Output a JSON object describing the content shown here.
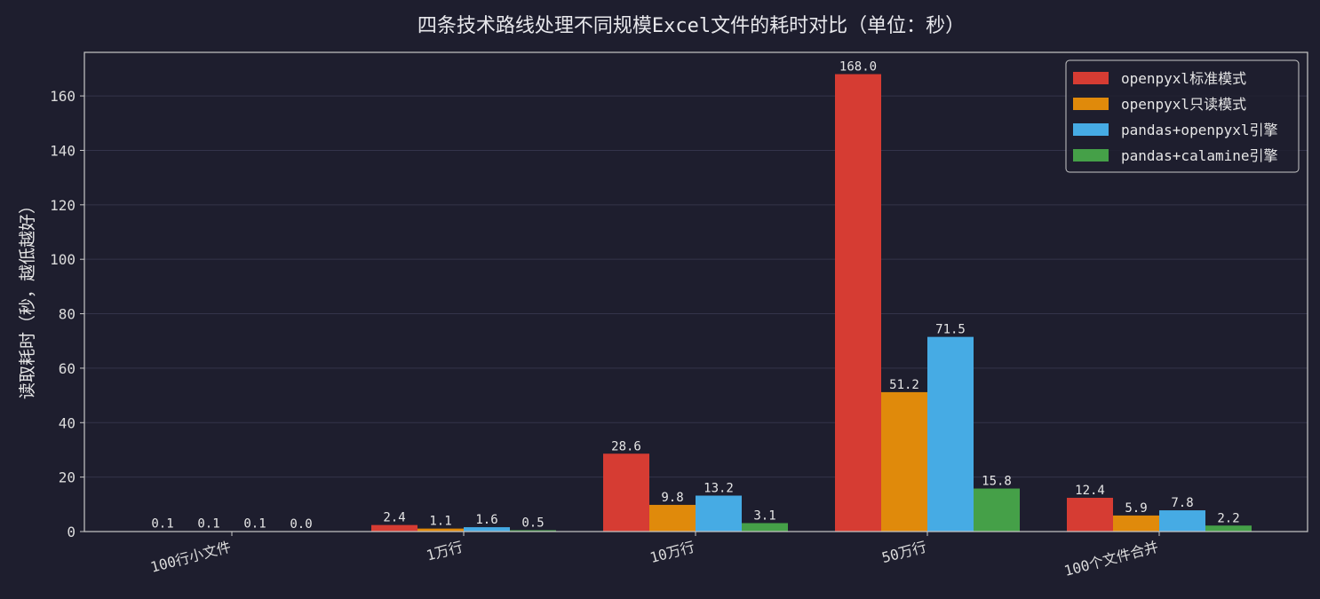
{
  "chart_data": {
    "type": "bar",
    "title": "四条技术路线处理不同规模Excel文件的耗时对比（单位：秒）",
    "xlabel": "",
    "ylabel": "读取耗时（秒，越低越好）",
    "categories": [
      "100行小文件",
      "1万行",
      "10万行",
      "50万行",
      "100个文件合并"
    ],
    "series": [
      {
        "name": "openpyxl标准模式",
        "color": "#d63c33",
        "values": [
          0.1,
          2.4,
          28.6,
          168.0,
          12.4
        ]
      },
      {
        "name": "openpyxl只读模式",
        "color": "#e08a0b",
        "values": [
          0.1,
          1.1,
          9.8,
          51.2,
          5.9
        ]
      },
      {
        "name": "pandas+openpyxl引擎",
        "color": "#46abe4",
        "values": [
          0.1,
          1.6,
          13.2,
          71.5,
          7.8
        ]
      },
      {
        "name": "pandas+calamine引擎",
        "color": "#45a048",
        "values": [
          0.0,
          0.5,
          3.1,
          15.8,
          2.2
        ]
      }
    ],
    "ylim": [
      0,
      176
    ],
    "yticks": [
      0,
      20,
      40,
      60,
      80,
      100,
      120,
      140,
      160
    ],
    "value_format": "1 decimal",
    "grid": true,
    "legend_position": "top-right",
    "background": "#1e1e2e",
    "text_color": "#e6e6e6"
  }
}
